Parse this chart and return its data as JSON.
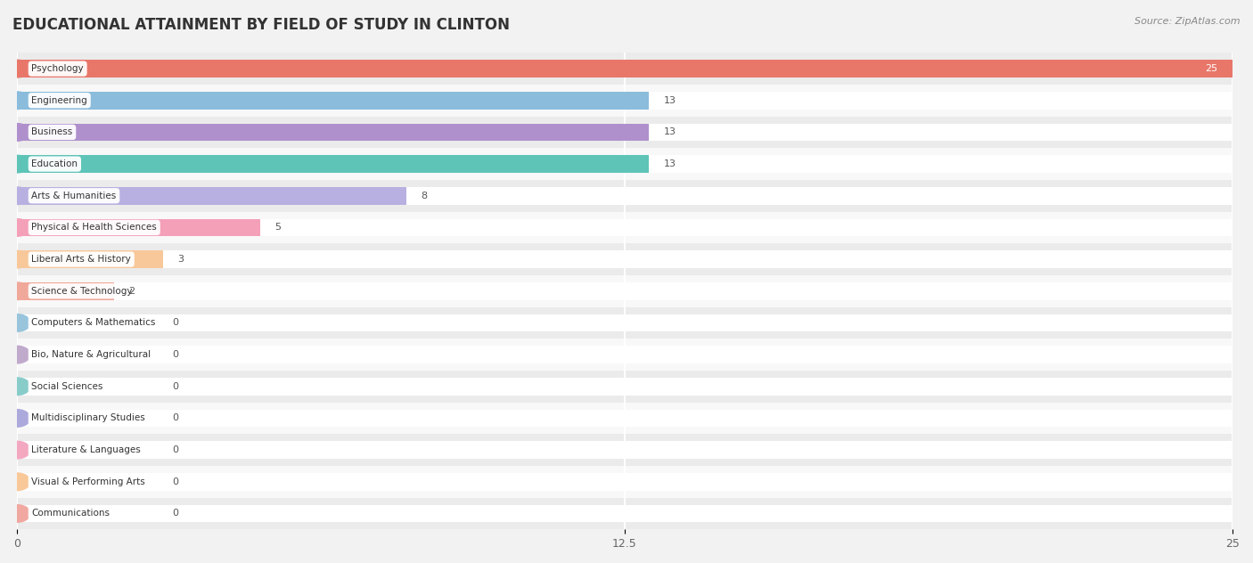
{
  "title": "EDUCATIONAL ATTAINMENT BY FIELD OF STUDY IN CLINTON",
  "source": "Source: ZipAtlas.com",
  "categories": [
    "Psychology",
    "Engineering",
    "Business",
    "Education",
    "Arts & Humanities",
    "Physical & Health Sciences",
    "Liberal Arts & History",
    "Science & Technology",
    "Computers & Mathematics",
    "Bio, Nature & Agricultural",
    "Social Sciences",
    "Multidisciplinary Studies",
    "Literature & Languages",
    "Visual & Performing Arts",
    "Communications"
  ],
  "values": [
    25,
    13,
    13,
    13,
    8,
    5,
    3,
    2,
    0,
    0,
    0,
    0,
    0,
    0,
    0
  ],
  "bar_colors": [
    "#E8776A",
    "#8BBCDC",
    "#B090CC",
    "#5EC4B8",
    "#B8B0E0",
    "#F4A0B8",
    "#F8C89A",
    "#F0A89A",
    "#98C4DC",
    "#C0AACC",
    "#88CCCA",
    "#ACAADC",
    "#F4A8C0",
    "#F8C898",
    "#F0A8A0"
  ],
  "xlim": [
    0,
    25
  ],
  "xticks": [
    0,
    12.5,
    25
  ],
  "background_color": "#f2f2f2",
  "row_alt_colors": [
    "#ebebeb",
    "#f8f8f8"
  ],
  "title_fontsize": 12,
  "bar_height": 0.55,
  "label_box_color": "#ffffff",
  "label_text_color": "#333333",
  "value_text_color": "#555555",
  "psych_value_color": "#ffffff"
}
